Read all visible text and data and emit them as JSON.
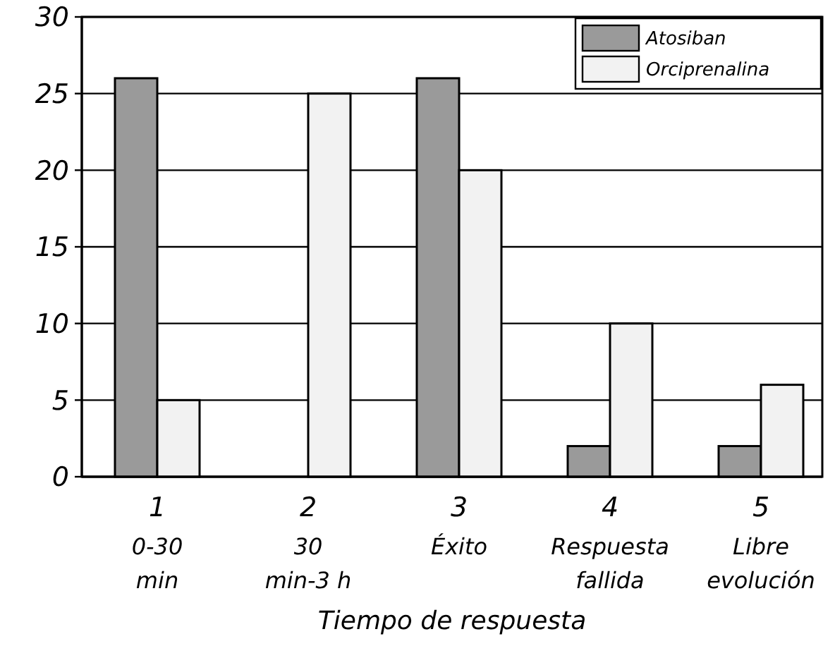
{
  "chart_data": {
    "type": "bar",
    "xlabel": "Tiempo de respuesta",
    "categories": [
      "1\n0-30\nmin",
      "2\n30\nmin-3 h",
      "3\nÉxito",
      "4\nRespuesta\nfallida",
      "5\nLibre\nevolución"
    ],
    "series": [
      {
        "name": "Atosiban",
        "color": "#9a9a9a",
        "values": [
          26,
          0,
          26,
          2,
          2
        ]
      },
      {
        "name": "Orciprenalina",
        "color": "#f2f2f2",
        "values": [
          5,
          25,
          20,
          10,
          6
        ]
      }
    ],
    "ylim": [
      0,
      30
    ],
    "yticks": [
      0,
      5,
      10,
      15,
      20,
      25,
      30
    ],
    "grid": "y",
    "legend": "top right"
  }
}
